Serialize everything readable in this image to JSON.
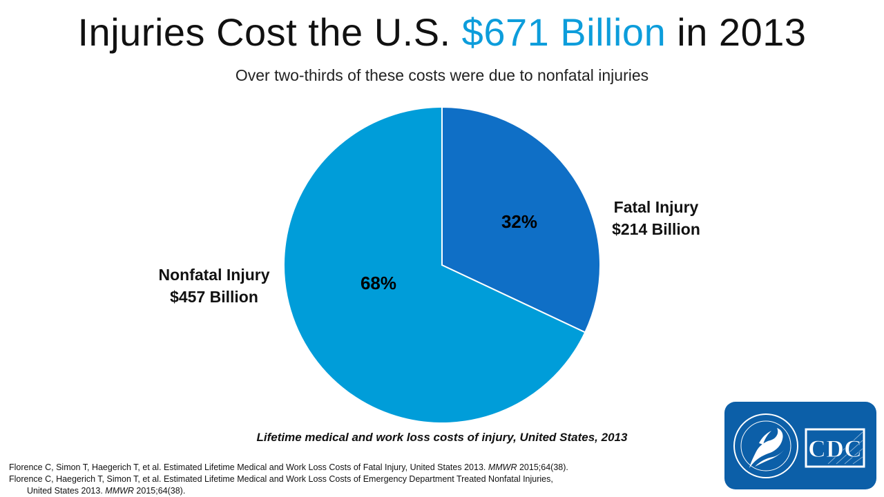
{
  "title": {
    "prefix": "Injuries Cost the U.S. ",
    "accent": "$671 Billion",
    "suffix": " in 2013"
  },
  "subtitle": "Over two-thirds of these costs were due to nonfatal injuries",
  "chart_data": {
    "type": "pie",
    "title": "Injuries Cost the U.S. $671 Billion in 2013",
    "subtitle": "Over two-thirds of these costs were due to nonfatal injuries",
    "slices": [
      {
        "name": "Fatal Injury",
        "value_label": "$214 Billion",
        "value": 214,
        "percent": 32,
        "percent_label": "32%",
        "color": "#0f6fc6"
      },
      {
        "name": "Nonfatal Injury",
        "value_label": "$457 Billion",
        "value": 457,
        "percent": 68,
        "percent_label": "68%",
        "color": "#009dd9"
      }
    ],
    "unit": "Billion USD",
    "start_angle": "12 o'clock, clockwise"
  },
  "caption": "Lifetime medical and work loss costs of injury, United States, 2013",
  "references": [
    {
      "text": "Florence C, Simon T, Haegerich T, et al. Estimated Lifetime Medical and Work Loss Costs of Fatal Injury, United States 2013. ",
      "journal": "MMWR",
      "cite": " 2015;64(38)."
    },
    {
      "text": "Florence C, Haegerich T, Simon T, et al. Estimated Lifetime Medical and Work Loss Costs of Emergency Department Treated Nonfatal Injuries,",
      "journal": "",
      "cite": ""
    },
    {
      "text": "United States 2013. ",
      "journal": "MMWR",
      "cite": " 2015;64(38)."
    }
  ],
  "logo": {
    "text": "CDC",
    "seal_text": "DEPARTMENT OF HEALTH & HUMAN SERVICES USA"
  }
}
